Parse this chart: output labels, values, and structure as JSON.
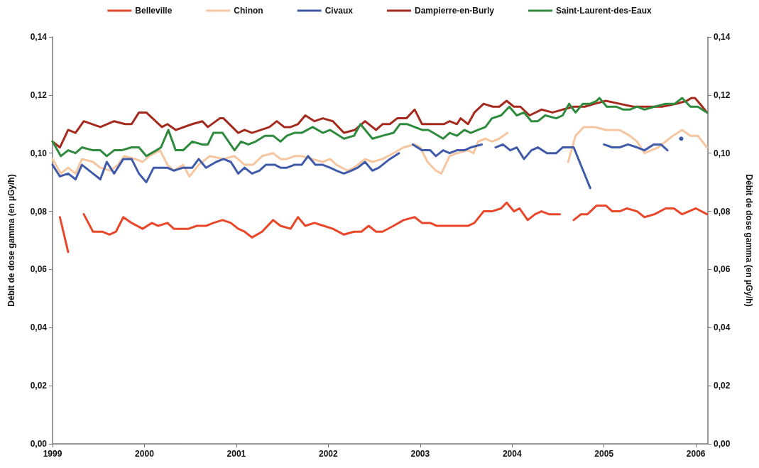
{
  "chart_data": {
    "type": "line",
    "ylabel": "Débit de dose gamma (en µGy/h)",
    "y2label": "Débit de dose gamma (en µGy/h)",
    "legend": "top",
    "grid": false,
    "marker": "none",
    "line_style": "solid",
    "xlim": [
      1999,
      2006.13
    ],
    "xticks": [
      1999,
      2000,
      2001,
      2002,
      2003,
      2004,
      2005,
      2006
    ],
    "ylim": [
      0,
      0.14
    ],
    "yticks": [
      {
        "value": 0,
        "label": "0,00"
      },
      {
        "value": 0.02,
        "label": "0,02"
      },
      {
        "value": 0.04,
        "label": "0,04"
      },
      {
        "value": 0.06,
        "label": "0,06"
      },
      {
        "value": 0.08,
        "label": "0,08"
      },
      {
        "value": 0.1,
        "label": "0,10"
      },
      {
        "value": 0.12,
        "label": "0,12"
      },
      {
        "value": 0.14,
        "label": "0,14"
      }
    ],
    "y2lim": [
      0,
      0.14
    ],
    "y2ticks": [
      {
        "value": 0,
        "label": "0,00"
      },
      {
        "value": 0.02,
        "label": "0,02"
      },
      {
        "value": 0.04,
        "label": "0,04"
      },
      {
        "value": 0.06,
        "label": "0,06"
      },
      {
        "value": 0.08,
        "label": "0,08"
      },
      {
        "value": 0.1,
        "label": "0,10"
      },
      {
        "value": 0.12,
        "label": "0,12"
      },
      {
        "value": 0.14,
        "label": "0,14"
      }
    ],
    "series": [
      {
        "name": "Belleville",
        "color": "#e8472a",
        "x": [
          1999.08,
          1999.17,
          1999.25,
          1999.34,
          1999.44,
          1999.54,
          1999.62,
          1999.69,
          1999.77,
          1999.86,
          1999.98,
          2000.08,
          2000.15,
          2000.25,
          2000.32,
          2000.48,
          2000.57,
          2000.67,
          2000.75,
          2000.85,
          2000.94,
          2001.02,
          2001.09,
          2001.17,
          2001.28,
          2001.4,
          2001.48,
          2001.59,
          2001.67,
          2001.75,
          2001.85,
          2001.95,
          2002.05,
          2002.17,
          2002.28,
          2002.36,
          2002.44,
          2002.52,
          2002.59,
          2002.71,
          2002.82,
          2002.94,
          2003.02,
          2003.11,
          2003.18,
          2003.32,
          2003.44,
          2003.52,
          2003.59,
          2003.69,
          2003.78,
          2003.88,
          2003.94,
          2004.02,
          2004.08,
          2004.17,
          2004.25,
          2004.32,
          2004.4,
          2004.52,
          2004.6,
          2004.67,
          2004.75,
          2004.82,
          2004.92,
          2005.02,
          2005.09,
          2005.17,
          2005.25,
          2005.36,
          2005.44,
          2005.55,
          2005.67,
          2005.76,
          2005.85,
          2006,
          2006.12
        ],
        "values": [
          0.078,
          0.066,
          null,
          0.079,
          0.073,
          0.073,
          0.072,
          0.073,
          0.078,
          0.076,
          0.074,
          0.076,
          0.075,
          0.076,
          0.074,
          0.074,
          0.075,
          0.075,
          0.076,
          0.077,
          0.076,
          0.074,
          0.073,
          0.071,
          0.073,
          0.077,
          0.075,
          0.074,
          0.078,
          0.075,
          0.076,
          0.075,
          0.074,
          0.072,
          0.073,
          0.073,
          0.075,
          0.073,
          0.073,
          0.075,
          0.077,
          0.078,
          0.076,
          0.076,
          0.075,
          0.075,
          0.075,
          0.075,
          0.076,
          0.08,
          0.08,
          0.081,
          0.083,
          0.08,
          0.081,
          0.077,
          0.079,
          0.08,
          0.079,
          0.079,
          null,
          0.077,
          0.079,
          0.079,
          0.082,
          0.082,
          0.08,
          0.08,
          0.081,
          0.08,
          0.078,
          0.079,
          0.081,
          0.081,
          0.079,
          0.081,
          0.079
        ]
      },
      {
        "name": "Chinon",
        "color": "#f5c6a0",
        "x": [
          1999,
          1999.09,
          1999.17,
          1999.25,
          1999.32,
          1999.44,
          1999.52,
          1999.63,
          1999.71,
          1999.78,
          1999.9,
          1999.98,
          2000.05,
          2000.17,
          2000.25,
          2000.32,
          2000.42,
          2000.49,
          2000.59,
          2000.71,
          2000.86,
          2000.98,
          2001.09,
          2001.18,
          2001.28,
          2001.4,
          2001.48,
          2001.55,
          2001.63,
          2001.71,
          2001.82,
          2001.94,
          2002.02,
          2002.09,
          2002.21,
          2002.28,
          2002.4,
          2002.48,
          2002.59,
          2002.71,
          2002.82,
          2002.94,
          2003,
          2003.08,
          2003.17,
          2003.23,
          2003.32,
          2003.4,
          2003.52,
          2003.58,
          2003.63,
          2003.71,
          2003.78,
          2003.86,
          2003.95,
          2004.3,
          2004.61,
          2004.69,
          2004.78,
          2004.9,
          2005.02,
          2005.17,
          2005.28,
          2005.36,
          2005.44,
          2005.59,
          2005.75,
          2005.85,
          2005.94,
          2006.02,
          2006.12
        ],
        "values": [
          0.098,
          0.093,
          0.095,
          0.093,
          0.098,
          0.097,
          0.095,
          0.094,
          0.096,
          0.099,
          0.098,
          0.097,
          0.099,
          0.101,
          0.096,
          0.094,
          0.096,
          0.092,
          0.096,
          0.099,
          0.098,
          0.099,
          0.096,
          0.096,
          0.099,
          0.1,
          0.098,
          0.098,
          0.099,
          0.099,
          0.098,
          0.097,
          0.098,
          0.096,
          0.094,
          0.095,
          0.098,
          0.097,
          0.098,
          0.1,
          0.102,
          0.103,
          0.102,
          0.097,
          0.094,
          0.093,
          0.099,
          0.1,
          0.101,
          0.1,
          0.104,
          0.105,
          0.104,
          0.105,
          0.107,
          null,
          0.097,
          0.106,
          0.109,
          0.109,
          0.108,
          0.108,
          0.106,
          0.104,
          0.1,
          0.102,
          0.106,
          0.108,
          0.106,
          0.106,
          0.102
        ]
      },
      {
        "name": "Civaux",
        "color": "#3f5aa8",
        "x": [
          1999,
          1999.08,
          1999.17,
          1999.25,
          1999.32,
          1999.44,
          1999.52,
          1999.59,
          1999.67,
          1999.77,
          1999.86,
          1999.94,
          2000.02,
          2000.1,
          2000.25,
          2000.32,
          2000.42,
          2000.52,
          2000.59,
          2000.67,
          2000.78,
          2000.86,
          2000.94,
          2001.02,
          2001.09,
          2001.17,
          2001.25,
          2001.32,
          2001.42,
          2001.48,
          2001.55,
          2001.63,
          2001.71,
          2001.78,
          2001.86,
          2001.94,
          2002.02,
          2002.09,
          2002.17,
          2002.25,
          2002.32,
          2002.4,
          2002.48,
          2002.55,
          2002.67,
          2002.77,
          2002.85,
          2002.92,
          2003.02,
          2003.11,
          2003.17,
          2003.25,
          2003.32,
          2003.4,
          2003.48,
          2003.55,
          2003.67,
          2003.75,
          2003.82,
          2003.9,
          2003.98,
          2004.05,
          2004.13,
          2004.21,
          2004.28,
          2004.38,
          2004.48,
          2004.55,
          2004.67,
          2004.85,
          2004.92,
          2005,
          2005.09,
          2005.17,
          2005.26,
          2005.36,
          2005.44,
          2005.54,
          2005.62,
          2005.69,
          2005.77,
          2005.84
        ],
        "values": [
          0.096,
          0.092,
          0.093,
          0.091,
          0.096,
          0.093,
          0.091,
          0.097,
          0.093,
          0.098,
          0.098,
          0.093,
          0.09,
          0.095,
          0.095,
          0.094,
          0.095,
          0.095,
          0.098,
          0.095,
          0.097,
          0.098,
          0.097,
          0.093,
          0.095,
          0.093,
          0.094,
          0.096,
          0.096,
          0.095,
          0.095,
          0.096,
          0.096,
          0.099,
          0.096,
          0.096,
          0.095,
          0.094,
          0.093,
          0.094,
          0.095,
          0.097,
          0.094,
          0.095,
          0.098,
          0.1,
          null,
          0.103,
          0.101,
          0.101,
          0.099,
          0.101,
          0.1,
          0.101,
          0.101,
          0.102,
          0.103,
          null,
          0.102,
          0.103,
          0.101,
          0.102,
          0.098,
          0.101,
          0.102,
          0.1,
          0.1,
          0.102,
          0.102,
          0.088,
          null,
          0.103,
          0.102,
          0.102,
          0.103,
          0.102,
          0.101,
          0.103,
          0.103,
          0.101,
          null,
          0.105
        ]
      },
      {
        "name": "Dampierre-en-Burly",
        "color": "#a52a1e",
        "x": [
          1999,
          1999.08,
          1999.17,
          1999.25,
          1999.34,
          1999.52,
          1999.67,
          1999.79,
          1999.86,
          1999.94,
          2000.02,
          2000.19,
          2000.25,
          2000.34,
          2000.52,
          2000.63,
          2000.69,
          2000.82,
          2000.86,
          2001.02,
          2001.09,
          2001.17,
          2001.36,
          2001.44,
          2001.52,
          2001.59,
          2001.67,
          2001.75,
          2001.85,
          2001.94,
          2002.05,
          2002.17,
          2002.29,
          2002.4,
          2002.52,
          2002.59,
          2002.67,
          2002.75,
          2002.85,
          2002.94,
          2003.02,
          2003.17,
          2003.26,
          2003.32,
          2003.4,
          2003.44,
          2003.52,
          2003.59,
          2003.69,
          2003.79,
          2003.86,
          2003.94,
          2004.02,
          2004.09,
          2004.19,
          2004.32,
          2004.44,
          2004.55,
          2004.67,
          2004.79,
          2004.9,
          2005.02,
          2005.17,
          2005.32,
          2005.48,
          2005.63,
          2005.79,
          2005.9,
          2005.95,
          2005.99,
          2006.07,
          2006.12
        ],
        "values": [
          0.104,
          0.102,
          0.108,
          0.107,
          0.111,
          0.109,
          0.111,
          0.11,
          0.11,
          0.114,
          0.114,
          0.109,
          0.11,
          0.108,
          0.11,
          0.111,
          0.109,
          0.112,
          0.112,
          0.107,
          0.108,
          0.107,
          0.109,
          0.111,
          0.109,
          0.109,
          0.11,
          0.113,
          0.111,
          0.112,
          0.111,
          0.107,
          0.108,
          0.111,
          0.108,
          0.11,
          0.11,
          0.112,
          0.112,
          0.115,
          0.11,
          0.11,
          0.11,
          0.111,
          0.11,
          0.112,
          0.11,
          0.114,
          0.117,
          0.116,
          0.116,
          0.118,
          0.116,
          0.116,
          0.113,
          0.115,
          0.114,
          0.115,
          0.116,
          0.116,
          0.117,
          0.118,
          0.117,
          0.116,
          0.116,
          0.116,
          0.117,
          0.118,
          0.119,
          0.119,
          0.116,
          0.114
        ]
      },
      {
        "name": "Saint-Laurent-des-Eaux",
        "color": "#2e8b3e",
        "x": [
          1999,
          1999.09,
          1999.17,
          1999.25,
          1999.32,
          1999.44,
          1999.52,
          1999.59,
          1999.67,
          1999.75,
          1999.86,
          1999.94,
          2000.02,
          2000.13,
          2000.18,
          2000.26,
          2000.34,
          2000.42,
          2000.52,
          2000.63,
          2000.69,
          2000.75,
          2000.85,
          2000.98,
          2001.05,
          2001.13,
          2001.21,
          2001.31,
          2001.4,
          2001.48,
          2001.55,
          2001.63,
          2001.71,
          2001.83,
          2001.94,
          2002.02,
          2002.17,
          2002.28,
          2002.35,
          2002.48,
          2002.59,
          2002.71,
          2002.78,
          2002.86,
          2003.02,
          2003.09,
          2003.25,
          2003.32,
          2003.4,
          2003.48,
          2003.55,
          2003.63,
          2003.71,
          2003.78,
          2003.88,
          2003.97,
          2004.05,
          2004.13,
          2004.21,
          2004.28,
          2004.36,
          2004.48,
          2004.55,
          2004.62,
          2004.69,
          2004.77,
          2004.85,
          2004.92,
          2004.95,
          2005.03,
          2005.13,
          2005.21,
          2005.28,
          2005.36,
          2005.44,
          2005.55,
          2005.67,
          2005.77,
          2005.85,
          2005.94,
          2006.02,
          2006.12
        ],
        "values": [
          0.104,
          0.099,
          0.101,
          0.1,
          0.102,
          0.101,
          0.101,
          0.099,
          0.101,
          0.101,
          0.102,
          0.102,
          0.099,
          0.101,
          0.102,
          0.108,
          0.101,
          0.101,
          0.104,
          0.103,
          0.103,
          0.107,
          0.107,
          0.101,
          0.104,
          0.103,
          0.104,
          0.106,
          0.106,
          0.104,
          0.106,
          0.107,
          0.107,
          0.109,
          0.107,
          0.108,
          0.105,
          0.106,
          0.11,
          0.105,
          0.106,
          0.107,
          0.11,
          0.11,
          0.108,
          0.108,
          0.105,
          0.107,
          0.106,
          0.108,
          0.107,
          0.108,
          0.109,
          0.112,
          0.113,
          0.116,
          0.113,
          0.114,
          0.111,
          0.111,
          0.113,
          0.112,
          0.113,
          0.117,
          0.114,
          0.117,
          0.117,
          0.118,
          0.119,
          0.116,
          0.116,
          0.115,
          0.115,
          0.116,
          0.115,
          0.116,
          0.117,
          0.117,
          0.119,
          0.116,
          0.116,
          0.114
        ]
      }
    ]
  }
}
